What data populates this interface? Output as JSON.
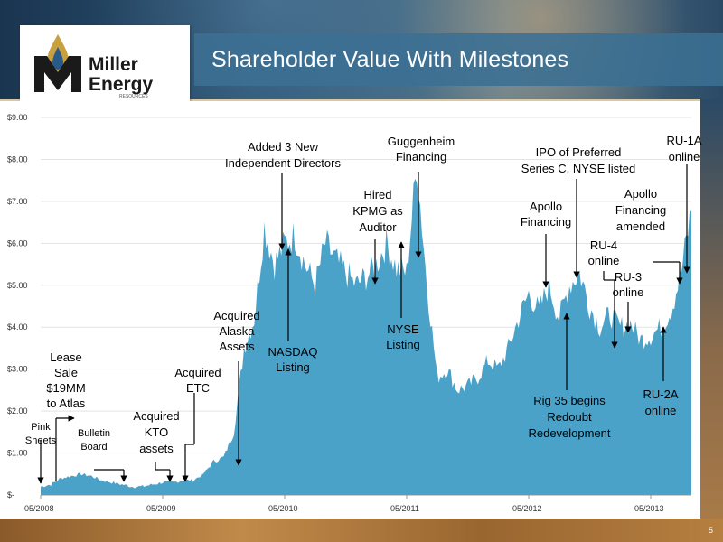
{
  "slide": {
    "title": "Shareholder Value With Milestones",
    "page_number": "5",
    "logo": {
      "name_line1": "Miller",
      "name_line2": "Energy",
      "tagline": "RESOURCES"
    }
  },
  "colors": {
    "area_fill": "#4aa2c9",
    "title_text": "#ffffff",
    "annotation_text": "#000000"
  },
  "chart_data": {
    "type": "area",
    "title": "Shareholder Value With Milestones",
    "xlabel": "",
    "ylabel": "",
    "x_ticks": [
      "05/2008",
      "05/2009",
      "05/2010",
      "05/2011",
      "05/2012",
      "05/2013"
    ],
    "y_ticks": [
      "$-",
      "$1.00",
      "$2.00",
      "$3.00",
      "$4.00",
      "$5.00",
      "$6.00",
      "$7.00",
      "$8.00",
      "$9.00"
    ],
    "ylim": [
      0,
      9
    ],
    "xlim": [
      "2008-05",
      "2013-09"
    ],
    "grid": true,
    "legend": "none",
    "series": [
      {
        "x": [
          "2008-05",
          "2008-06",
          "2008-07",
          "2008-08",
          "2008-09",
          "2008-10",
          "2008-11",
          "2008-12",
          "2009-01",
          "2009-02",
          "2009-03",
          "2009-04",
          "2009-05",
          "2009-06",
          "2009-07",
          "2009-08",
          "2009-09",
          "2009-10",
          "2009-11",
          "2009-12",
          "2010-01",
          "2010-02",
          "2010-03",
          "2010-04",
          "2010-05",
          "2010-06",
          "2010-07",
          "2010-08",
          "2010-09",
          "2010-10",
          "2010-11",
          "2010-12",
          "2011-01",
          "2011-02",
          "2011-03",
          "2011-04",
          "2011-05",
          "2011-06",
          "2011-07",
          "2011-08",
          "2011-09",
          "2011-10",
          "2011-11",
          "2011-12",
          "2012-01",
          "2012-02",
          "2012-03",
          "2012-04",
          "2012-05",
          "2012-06",
          "2012-07",
          "2012-08",
          "2012-09",
          "2012-10",
          "2012-11",
          "2012-12",
          "2013-01",
          "2013-02",
          "2013-03",
          "2013-04",
          "2013-05",
          "2013-06",
          "2013-07",
          "2013-08",
          "2013-09"
        ],
        "values": [
          0.2,
          0.25,
          0.4,
          0.45,
          0.5,
          0.45,
          0.35,
          0.3,
          0.25,
          0.2,
          0.2,
          0.25,
          0.3,
          0.3,
          0.35,
          0.35,
          0.5,
          0.8,
          0.9,
          1.5,
          3.5,
          4.2,
          6.4,
          5.5,
          6.0,
          6.2,
          5.5,
          5.0,
          6.0,
          5.6,
          5.3,
          5.0,
          5.2,
          5.5,
          6.0,
          5.4,
          5.3,
          7.9,
          5.0,
          2.8,
          3.0,
          2.5,
          2.6,
          2.8,
          3.2,
          3.0,
          3.5,
          4.2,
          4.8,
          4.4,
          5.0,
          4.2,
          5.0,
          5.3,
          4.5,
          4.0,
          4.3,
          4.0,
          4.1,
          3.7,
          3.8,
          4.0,
          4.4,
          5.3,
          6.8
        ]
      }
    ]
  },
  "annotations": [
    {
      "key": "pink_sheets",
      "lines": [
        "Pink",
        "Sheets"
      ]
    },
    {
      "key": "lease_sale",
      "lines": [
        "Lease",
        "Sale",
        "$19MM",
        "to Atlas"
      ]
    },
    {
      "key": "bulletin_board",
      "lines": [
        "Bulletin",
        "Board"
      ]
    },
    {
      "key": "acquired_kto",
      "lines": [
        "Acquired",
        "KTO",
        "assets"
      ]
    },
    {
      "key": "acquired_etc",
      "lines": [
        "Acquired",
        "ETC"
      ]
    },
    {
      "key": "acquired_alaska",
      "lines": [
        "Acquired",
        "Alaska",
        "Assets"
      ]
    },
    {
      "key": "added_directors",
      "lines": [
        "Added 3 New",
        "Independent Directors"
      ]
    },
    {
      "key": "nasdaq",
      "lines": [
        "NASDAQ",
        "Listing"
      ]
    },
    {
      "key": "hired_kpmg",
      "lines": [
        "Hired",
        "KPMG as",
        "Auditor"
      ]
    },
    {
      "key": "nyse_listing",
      "lines": [
        "NYSE",
        "Listing"
      ]
    },
    {
      "key": "guggenheim",
      "lines": [
        "Guggenheim",
        "Financing"
      ]
    },
    {
      "key": "apollo_financing",
      "lines": [
        "Apollo",
        "Financing"
      ]
    },
    {
      "key": "ipo_preferred",
      "lines": [
        "IPO of Preferred",
        "Series C, NYSE listed"
      ]
    },
    {
      "key": "rig35",
      "lines": [
        "Rig 35 begins",
        "Redoubt",
        "Redevelopment"
      ]
    },
    {
      "key": "ru4",
      "lines": [
        "RU-4",
        "online"
      ]
    },
    {
      "key": "ru3",
      "lines": [
        "RU-3",
        "online"
      ]
    },
    {
      "key": "apollo_amended",
      "lines": [
        "Apollo",
        "Financing",
        "amended"
      ]
    },
    {
      "key": "ru2a",
      "lines": [
        "RU-2A",
        "online"
      ]
    },
    {
      "key": "ru1a",
      "lines": [
        "RU-1A",
        "online"
      ]
    }
  ]
}
